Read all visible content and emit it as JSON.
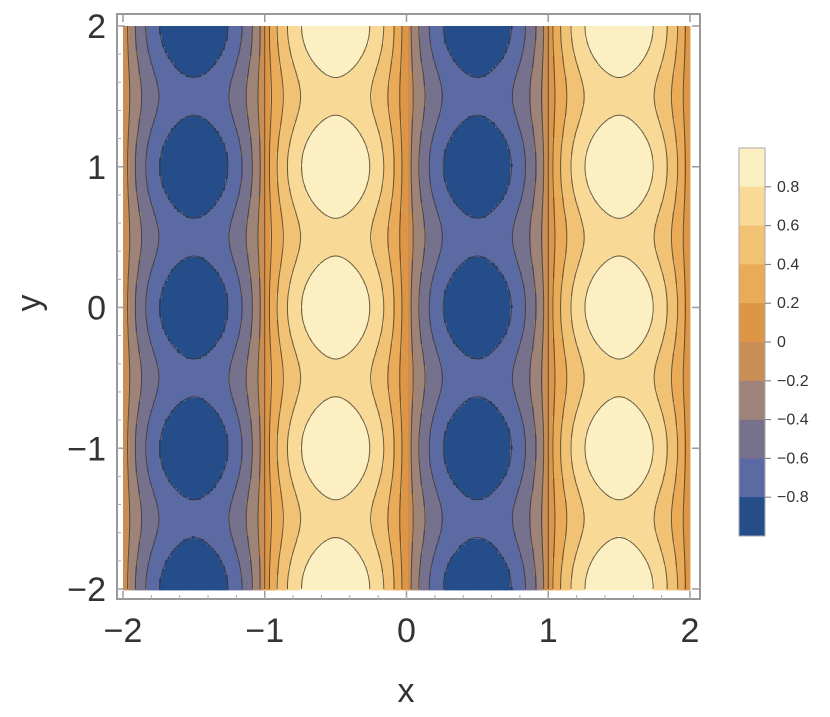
{
  "chart_data": {
    "type": "heatmap",
    "subtype": "contour",
    "xlabel": "x",
    "ylabel": "y",
    "xlim": [
      -2,
      2
    ],
    "ylim": [
      -2,
      2
    ],
    "x_ticks": [
      -2,
      -1,
      0,
      1,
      2
    ],
    "y_ticks": [
      -2,
      -1,
      0,
      1,
      2
    ],
    "x_tick_labels": [
      "−2",
      "−1",
      "0",
      "1",
      "2"
    ],
    "y_tick_labels": [
      "−2",
      "−1",
      "0",
      "1",
      "2"
    ],
    "grid": false,
    "legend_placement": "right",
    "field": {
      "x_period": 2,
      "y_period": 1,
      "peak_x": [
        -1.5,
        0.5
      ],
      "trough_x": [
        -0.5,
        1.5
      ],
      "extreme_y": [
        -2,
        -1,
        0,
        1,
        2
      ],
      "range": [
        -1,
        1
      ]
    },
    "contour_levels": [
      -0.8,
      -0.6,
      -0.4,
      -0.2,
      0,
      0.2,
      0.4,
      0.6,
      0.8
    ],
    "legend": {
      "labels": [
        "0.8",
        "0.6",
        "0.4",
        "0.2",
        "0",
        "−0.2",
        "−0.4",
        "−0.6",
        "−0.8"
      ],
      "bands": [
        {
          "range": [
            0.8,
            1.0
          ],
          "color": "#FCEFC2"
        },
        {
          "range": [
            0.6,
            0.8
          ],
          "color": "#F8D996"
        },
        {
          "range": [
            0.4,
            0.6
          ],
          "color": "#F1C274"
        },
        {
          "range": [
            0.2,
            0.4
          ],
          "color": "#E9AB58"
        },
        {
          "range": [
            0.0,
            0.2
          ],
          "color": "#DC9646"
        },
        {
          "range": [
            -0.2,
            0.0
          ],
          "color": "#C88E55"
        },
        {
          "range": [
            -0.4,
            -0.2
          ],
          "color": "#9E8478"
        },
        {
          "range": [
            -0.6,
            -0.4
          ],
          "color": "#76728E"
        },
        {
          "range": [
            -0.8,
            -0.6
          ],
          "color": "#5C6AA3"
        },
        {
          "range": [
            -1.0,
            -0.8
          ],
          "color": "#244D8A"
        }
      ]
    }
  }
}
